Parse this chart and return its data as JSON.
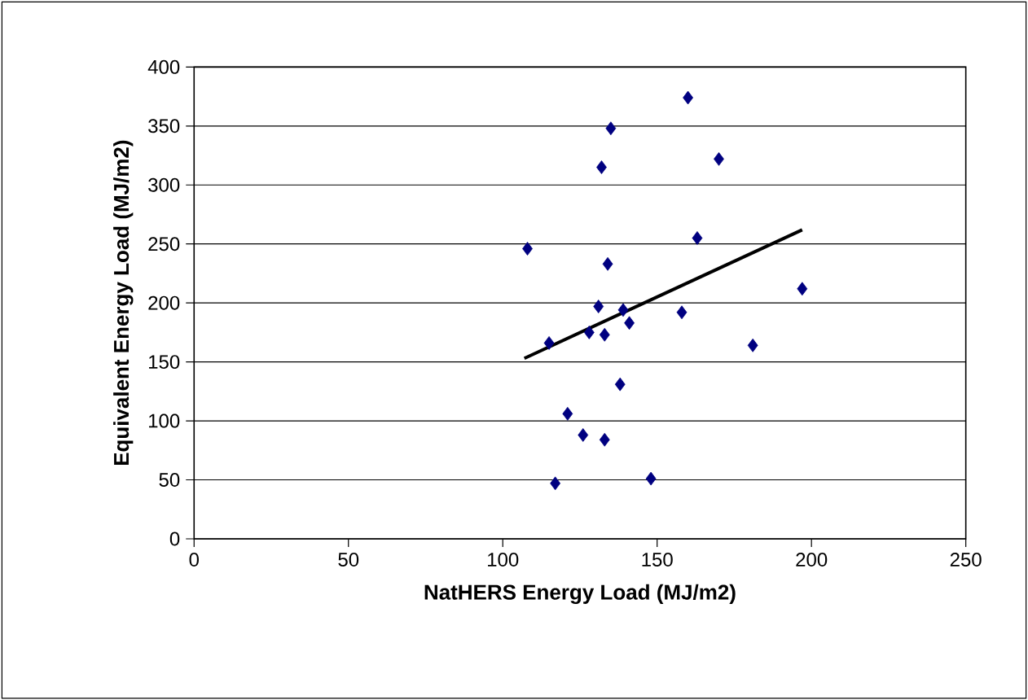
{
  "chart_data": {
    "type": "scatter",
    "xlabel": "NatHERS Energy Load (MJ/m2)",
    "ylabel": "Equivalent Energy Load (MJ/m2)",
    "xlim": [
      0,
      250
    ],
    "xticks": [
      0,
      50,
      100,
      150,
      200,
      250
    ],
    "ylim": [
      0,
      400
    ],
    "yticks": [
      0,
      50,
      100,
      150,
      200,
      250,
      300,
      350,
      400
    ],
    "grid": "y",
    "marker": "diamond",
    "series": [
      {
        "color": "#000080",
        "x": [
          108,
          135,
          160,
          132,
          170,
          163,
          134,
          197,
          131,
          139,
          141,
          158,
          128,
          133,
          115,
          181,
          138,
          121,
          126,
          133,
          117,
          148
        ],
        "values": [
          246,
          348,
          374,
          315,
          322,
          255,
          233,
          212,
          197,
          194,
          183,
          192,
          175,
          173,
          166,
          164,
          131,
          106,
          88,
          84,
          47,
          51
        ]
      },
      {
        "type": "line",
        "color": "#000000",
        "marker": "none",
        "line_style": "solid",
        "x": [
          107,
          197
        ],
        "values": [
          153,
          262
        ]
      }
    ]
  }
}
